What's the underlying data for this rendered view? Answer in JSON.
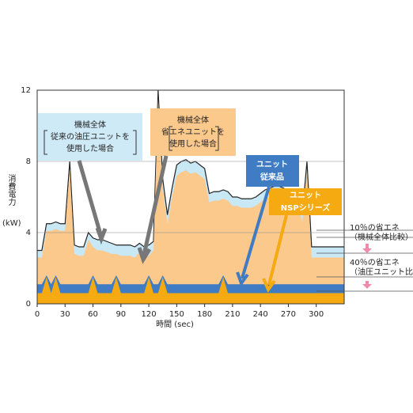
{
  "chart_data": {
    "type": "area",
    "x": [
      0,
      5,
      10,
      15,
      20,
      25,
      30,
      35,
      40,
      45,
      50,
      55,
      60,
      65,
      70,
      75,
      80,
      85,
      90,
      95,
      100,
      105,
      110,
      115,
      120,
      125,
      130,
      135,
      140,
      145,
      150,
      155,
      160,
      165,
      170,
      175,
      180,
      185,
      190,
      195,
      200,
      205,
      210,
      215,
      220,
      225,
      230,
      235,
      240,
      245,
      250,
      255,
      260,
      265,
      270,
      275,
      280,
      285,
      290,
      295,
      300,
      305,
      310,
      315,
      320,
      325,
      330
    ],
    "series": [
      {
        "color": "#c8e8f6",
        "line_color": "#222222",
        "values": [
          3.0,
          3.0,
          4.5,
          4.5,
          4.6,
          4.5,
          4.5,
          8.0,
          3.3,
          3.2,
          3.2,
          4.0,
          3.7,
          3.6,
          3.6,
          3.5,
          3.4,
          3.3,
          3.3,
          3.3,
          3.3,
          3.2,
          3.4,
          3.2,
          3.3,
          3.5,
          12,
          7.0,
          5.0,
          6.5,
          7.8,
          8.0,
          8.1,
          7.9,
          8.0,
          7.8,
          7.6,
          6.2,
          6.3,
          6.3,
          6.4,
          6.3,
          6.0,
          6.0,
          5.9,
          5.9,
          5.9,
          6.0,
          6.2,
          6.4,
          6.5,
          6.6,
          6.6,
          6.5,
          6.3,
          6.2,
          6.1,
          5.0,
          8.0,
          3.2,
          3.2,
          3.2,
          3.2,
          3.2,
          3.2,
          3.2,
          3.2
        ]
      },
      {
        "color": "#fbc98c",
        "values": [
          2.6,
          2.6,
          4.1,
          4.1,
          4.2,
          4.1,
          4.1,
          7.6,
          2.8,
          2.7,
          2.7,
          3.6,
          3.2,
          3.0,
          3.0,
          2.9,
          2.8,
          2.8,
          2.7,
          2.7,
          2.7,
          2.6,
          2.9,
          2.6,
          2.7,
          3.0,
          11.5,
          6.5,
          4.5,
          6.0,
          7.2,
          7.4,
          7.5,
          7.3,
          7.4,
          7.2,
          7.0,
          5.7,
          5.8,
          5.8,
          5.9,
          5.8,
          5.5,
          5.5,
          5.4,
          5.4,
          5.4,
          5.5,
          5.7,
          5.9,
          6.0,
          6.1,
          6.1,
          6.0,
          5.8,
          5.7,
          5.6,
          4.6,
          7.5,
          2.6,
          2.6,
          2.6,
          2.6,
          2.6,
          2.6,
          2.6,
          2.6
        ]
      },
      {
        "color": "#3f7cc4",
        "values": [
          1.1,
          1.1,
          1.6,
          1.1,
          1.6,
          1.1,
          1.1,
          1.1,
          1.1,
          1.1,
          1.1,
          1.1,
          1.6,
          1.1,
          1.1,
          1.1,
          1.1,
          1.6,
          1.1,
          1.1,
          1.1,
          1.1,
          1.1,
          1.1,
          1.6,
          1.1,
          1.1,
          1.6,
          1.1,
          1.1,
          1.1,
          1.1,
          1.1,
          1.1,
          1.1,
          1.1,
          1.1,
          1.1,
          1.1,
          1.1,
          1.6,
          1.1,
          1.1,
          1.1,
          1.1,
          1.1,
          1.1,
          1.1,
          1.1,
          1.1,
          1.1,
          1.1,
          1.1,
          1.1,
          1.1,
          1.1,
          1.1,
          1.1,
          1.1,
          1.1,
          1.1,
          1.1,
          1.1,
          1.1,
          1.1,
          1.1,
          1.1
        ]
      },
      {
        "color": "#f5aa12",
        "values": [
          0.6,
          0.6,
          1.5,
          0.6,
          1.5,
          0.6,
          0.6,
          0.6,
          0.6,
          0.6,
          0.6,
          0.6,
          1.5,
          0.6,
          0.6,
          0.6,
          0.6,
          1.5,
          0.6,
          0.6,
          0.6,
          0.6,
          0.6,
          0.6,
          1.5,
          0.6,
          0.6,
          1.5,
          0.6,
          0.6,
          0.6,
          0.6,
          0.6,
          0.6,
          0.6,
          0.6,
          0.6,
          0.6,
          0.6,
          0.6,
          1.5,
          0.6,
          0.6,
          0.6,
          0.6,
          0.6,
          0.6,
          0.6,
          0.6,
          0.6,
          0.6,
          0.6,
          0.6,
          0.6,
          0.6,
          0.6,
          0.6,
          0.6,
          0.6,
          0.6,
          0.6,
          0.6,
          0.6,
          0.6,
          0.6,
          0.6,
          0.6
        ]
      }
    ],
    "xlim": [
      0,
      330
    ],
    "xticks": [
      0,
      30,
      60,
      90,
      120,
      150,
      180,
      210,
      240,
      270,
      300
    ],
    "ylim": [
      0,
      12
    ],
    "yticks": [
      0,
      4,
      8,
      12
    ],
    "grid": true,
    "xlabel": "時間 (sec)",
    "ylabel": "消費電力",
    "yunit": "(kW)",
    "annotations": [
      {
        "lines": [
          "機械全体",
          "従来の油圧ユニットを",
          "使用した場合"
        ]
      },
      {
        "lines": [
          "機械全体",
          "省エネユニットを",
          "使用した場合"
        ]
      },
      {
        "lines": [
          "ユニット",
          "従来品"
        ]
      },
      {
        "lines": [
          "ユニット",
          "NSPシリーズ"
        ]
      },
      {
        "lines": [
          "10％の省エネ",
          "（機械全体比較）"
        ]
      },
      {
        "lines": [
          "40％の省エネ",
          "（油圧ユニット比較）"
        ]
      }
    ]
  }
}
